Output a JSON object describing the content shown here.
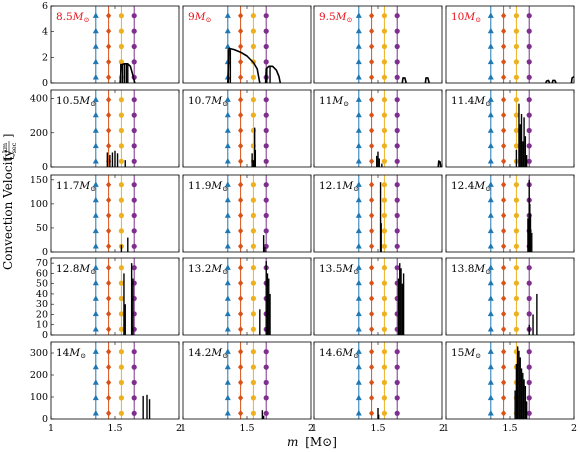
{
  "figure": {
    "ylabel": "Convection Velocity",
    "ylabel_unit_num": "km",
    "ylabel_unit_den": "sec",
    "xlabel_italic": "m",
    "xlabel_unit": "[M⊙]"
  },
  "colors": {
    "blue_marker": "#1f77b4",
    "orange_marker": "#d95319",
    "yellow_marker": "#edb120",
    "purple_marker": "#7e2f8e",
    "curve": "#000000",
    "label_red": "#e8111a",
    "label_black": "#000000"
  },
  "chart_data": {
    "type": "line",
    "layout": "5x4 grid of small multiples, shared x-axis",
    "xlim": [
      1,
      2
    ],
    "x_ticks": [
      "1",
      "1.5",
      "2"
    ],
    "marker_columns": [
      {
        "x": 1.35,
        "shape": "triangle",
        "color": "#1f77b4"
      },
      {
        "x": 1.45,
        "shape": "diamond",
        "color": "#d95319"
      },
      {
        "x": 1.55,
        "shape": "circle",
        "color": "#edb120"
      },
      {
        "x": 1.65,
        "shape": "circle",
        "color": "#7e2f8e"
      }
    ],
    "rows": [
      {
        "ylim": [
          0,
          6
        ],
        "y_ticks": [
          "0",
          "2",
          "4",
          "6"
        ]
      },
      {
        "ylim": [
          0,
          450
        ],
        "y_ticks": [
          "0",
          "200",
          "400"
        ]
      },
      {
        "ylim": [
          0,
          160
        ],
        "y_ticks": [
          "0",
          "50",
          "100",
          "150"
        ]
      },
      {
        "ylim": [
          0,
          75
        ],
        "y_ticks": [
          "0",
          "10",
          "20",
          "30",
          "40",
          "50",
          "60",
          "70"
        ]
      },
      {
        "ylim": [
          0,
          350
        ],
        "y_ticks": [
          "0",
          "100",
          "200",
          "300"
        ]
      }
    ],
    "panels": [
      {
        "mass": "8.5",
        "label_color": "red",
        "segments": [
          [
            [
              1.54,
              0
            ],
            [
              1.55,
              1.4
            ],
            [
              1.57,
              1.5
            ],
            [
              1.6,
              1.5
            ],
            [
              1.62,
              1.3
            ],
            [
              1.64,
              0.6
            ],
            [
              1.655,
              0
            ]
          ]
        ],
        "spikes": [
          [
            1.545,
            1.5
          ],
          [
            1.56,
            1.5
          ],
          [
            1.575,
            1.5
          ],
          [
            1.59,
            1.5
          ],
          [
            1.6,
            1.5
          ]
        ]
      },
      {
        "mass": "9",
        "label_color": "red",
        "segments": [
          [
            [
              1.35,
              0
            ],
            [
              1.36,
              2.7
            ],
            [
              1.4,
              2.6
            ],
            [
              1.45,
              2.4
            ],
            [
              1.5,
              2.1
            ],
            [
              1.55,
              1.6
            ],
            [
              1.58,
              1.1
            ],
            [
              1.6,
              0
            ]
          ],
          [
            [
              1.645,
              0
            ],
            [
              1.65,
              1.1
            ],
            [
              1.67,
              1.3
            ],
            [
              1.7,
              1.3
            ],
            [
              1.73,
              1.0
            ],
            [
              1.75,
              0.5
            ],
            [
              1.76,
              0
            ]
          ]
        ],
        "spikes": [
          [
            1.355,
            2.6
          ],
          [
            1.37,
            2.6
          ],
          [
            1.655,
            1.2
          ],
          [
            1.68,
            1.3
          ]
        ]
      },
      {
        "mass": "9.5",
        "label_color": "red",
        "segments": [
          [
            [
              1.69,
              0
            ],
            [
              1.695,
              0.4
            ],
            [
              1.71,
              0.4
            ],
            [
              1.72,
              0
            ]
          ],
          [
            [
              1.87,
              0
            ],
            [
              1.875,
              0.4
            ],
            [
              1.89,
              0.4
            ],
            [
              1.9,
              0
            ]
          ]
        ],
        "spikes": []
      },
      {
        "mass": "10",
        "label_color": "red",
        "segments": [
          [
            [
              1.78,
              0
            ],
            [
              1.785,
              0.15
            ],
            [
              1.8,
              0.2
            ],
            [
              1.81,
              0
            ]
          ],
          [
            [
              1.83,
              0
            ],
            [
              1.835,
              0.2
            ],
            [
              1.85,
              0.2
            ],
            [
              1.86,
              0
            ]
          ],
          [
            [
              1.98,
              0
            ],
            [
              1.985,
              0.4
            ],
            [
              2.0,
              0.5
            ]
          ]
        ],
        "spikes": []
      },
      {
        "mass": "10.5",
        "label_color": "black",
        "segments": [],
        "spikes": [
          [
            1.44,
            85
          ],
          [
            1.46,
            70
          ],
          [
            1.48,
            85
          ],
          [
            1.5,
            95
          ],
          [
            1.52,
            80
          ],
          [
            1.58,
            40
          ]
        ]
      },
      {
        "mass": "10.7",
        "label_color": "black",
        "segments": [],
        "spikes": [
          [
            1.54,
            80
          ],
          [
            1.55,
            40
          ],
          [
            1.56,
            230
          ],
          [
            1.565,
            100
          ]
        ]
      },
      {
        "mass": "11",
        "label_color": "black",
        "segments": [
          [
            [
              1.97,
              0
            ],
            [
              1.975,
              35
            ],
            [
              1.985,
              30
            ],
            [
              1.99,
              0
            ]
          ]
        ],
        "spikes": [
          [
            1.49,
            65
          ],
          [
            1.5,
            90
          ],
          [
            1.51,
            50
          ],
          [
            1.53,
            20
          ]
        ]
      },
      {
        "mass": "11.4",
        "label_color": "black",
        "segments": [],
        "spikes": [
          [
            1.55,
            100
          ],
          [
            1.57,
            370
          ],
          [
            1.58,
            250
          ],
          [
            1.59,
            310
          ],
          [
            1.6,
            150
          ],
          [
            1.61,
            290
          ],
          [
            1.62,
            180
          ],
          [
            1.63,
            70
          ]
        ]
      },
      {
        "mass": "11.7",
        "label_color": "black",
        "segments": [],
        "spikes": [
          [
            1.55,
            15
          ],
          [
            1.6,
            30
          ]
        ]
      },
      {
        "mass": "11.9",
        "label_color": "black",
        "segments": [],
        "spikes": [
          [
            1.63,
            35
          ],
          [
            1.64,
            10
          ]
        ]
      },
      {
        "mass": "12.1",
        "label_color": "black",
        "segments": [],
        "spikes": [
          [
            1.52,
            145
          ],
          [
            1.525,
            60
          ]
        ]
      },
      {
        "mass": "12.4",
        "label_color": "black",
        "segments": [],
        "spikes": [
          [
            1.64,
            70
          ],
          [
            1.65,
            150
          ],
          [
            1.655,
            100
          ],
          [
            1.66,
            80
          ],
          [
            1.67,
            40
          ]
        ]
      },
      {
        "mass": "12.8",
        "label_color": "black",
        "segments": [],
        "spikes": [
          [
            1.57,
            60
          ],
          [
            1.58,
            30
          ],
          [
            1.63,
            70
          ],
          [
            1.64,
            55
          ]
        ]
      },
      {
        "mass": "13.2",
        "label_color": "black",
        "segments": [],
        "spikes": [
          [
            1.6,
            25
          ],
          [
            1.65,
            72
          ],
          [
            1.66,
            60
          ],
          [
            1.67,
            55
          ],
          [
            1.68,
            40
          ]
        ]
      },
      {
        "mass": "13.5",
        "label_color": "black",
        "segments": [],
        "spikes": [
          [
            1.66,
            55
          ],
          [
            1.67,
            70
          ],
          [
            1.68,
            65
          ],
          [
            1.69,
            50
          ],
          [
            1.7,
            60
          ]
        ]
      },
      {
        "mass": "13.8",
        "label_color": "black",
        "segments": [],
        "spikes": [
          [
            1.65,
            10
          ],
          [
            1.68,
            20
          ],
          [
            1.71,
            40
          ]
        ]
      },
      {
        "mass": "14",
        "label_color": "black",
        "segments": [],
        "spikes": [
          [
            1.72,
            105
          ],
          [
            1.75,
            110
          ],
          [
            1.77,
            90
          ]
        ]
      },
      {
        "mass": "14.2",
        "label_color": "black",
        "segments": [],
        "spikes": [
          [
            1.62,
            40
          ],
          [
            1.63,
            15
          ]
        ]
      },
      {
        "mass": "14.6",
        "label_color": "black",
        "segments": [],
        "spikes": [
          [
            1.5,
            50
          ],
          [
            1.505,
            20
          ]
        ]
      },
      {
        "mass": "15",
        "label_color": "black",
        "segments": [],
        "spikes": [
          [
            1.54,
            130
          ],
          [
            1.55,
            250
          ],
          [
            1.56,
            330
          ],
          [
            1.57,
            310
          ],
          [
            1.58,
            280
          ],
          [
            1.59,
            230
          ],
          [
            1.6,
            210
          ],
          [
            1.61,
            180
          ],
          [
            1.62,
            150
          ],
          [
            1.63,
            80
          ]
        ]
      }
    ]
  }
}
